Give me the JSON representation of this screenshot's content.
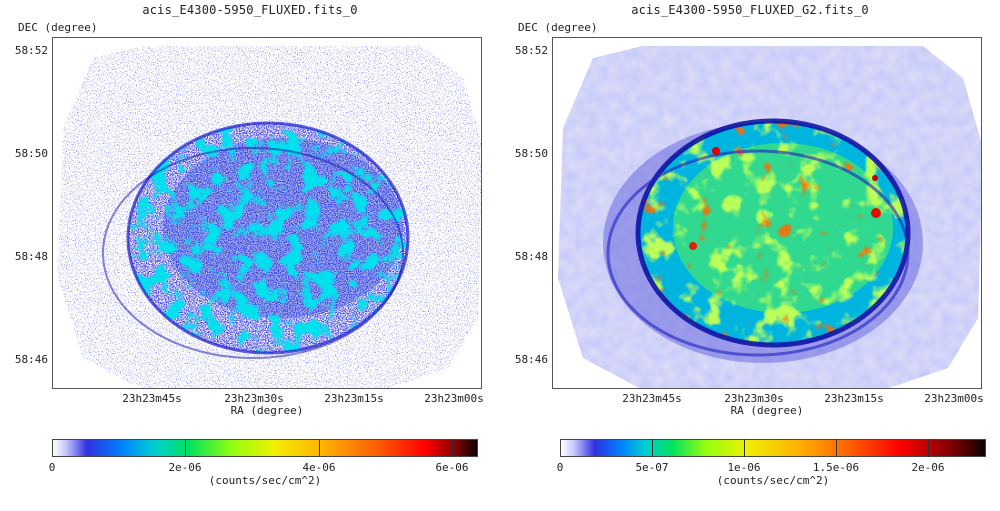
{
  "panels": [
    {
      "title": "acis_E4300-5950_FLUXED.fits_0",
      "y_axis_label": "DEC (degree)",
      "x_axis_label": "RA (degree)",
      "y_ticks": [
        "58:52",
        "58:50",
        "58:48",
        "58:46"
      ],
      "x_ticks": [
        "23h23m45s",
        "23h23m30s",
        "23h23m15s",
        "23h23m00s"
      ],
      "colorbar_ticks": [
        "0",
        "2e-06",
        "4e-06",
        "6e-06"
      ],
      "colorbar_label": "(counts/sec/cm^2)",
      "style": "raw"
    },
    {
      "title": "acis_E4300-5950_FLUXED_G2.fits_0",
      "y_axis_label": "DEC (degree)",
      "x_axis_label": "RA (degree)",
      "y_ticks": [
        "58:52",
        "58:50",
        "58:48",
        "58:46"
      ],
      "x_ticks": [
        "23h23m45s",
        "23h23m30s",
        "23h23m15s",
        "23h23m00s"
      ],
      "colorbar_ticks": [
        "0",
        "5e-07",
        "1e-06",
        "1.5e-06",
        "2e-06"
      ],
      "colorbar_label": "(counts/sec/cm^2)",
      "style": "smoothed"
    }
  ],
  "colormap": [
    "#ffffff",
    "#c8c8ff",
    "#6060f0",
    "#0000c8",
    "#0060ff",
    "#00c8ff",
    "#00e080",
    "#60ff20",
    "#e8ff00",
    "#ffc000",
    "#ff7000",
    "#ff1000",
    "#a00000",
    "#200000"
  ]
}
